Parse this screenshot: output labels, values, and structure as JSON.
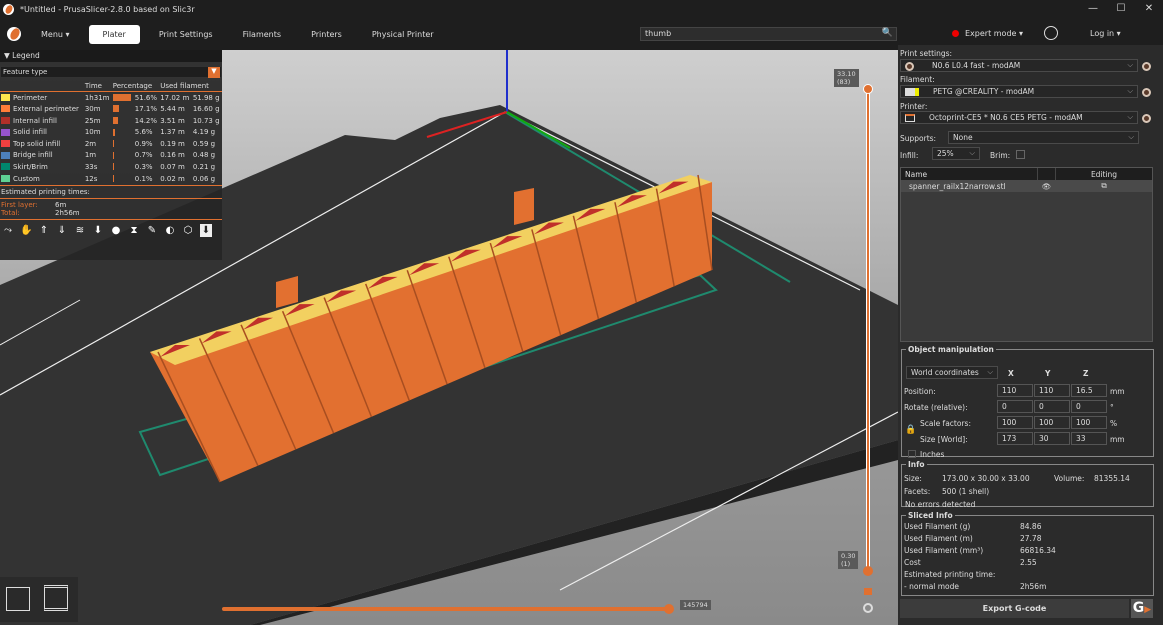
{
  "window": {
    "title": "*Untitled - PrusaSlicer-2.8.0 based on Slic3r",
    "controls": [
      "—",
      "☐",
      "✕"
    ]
  },
  "tabs": {
    "menu": "Menu ▾",
    "items": [
      "Plater",
      "Print Settings",
      "Filaments",
      "Printers",
      "Physical Printer"
    ],
    "active": "Plater"
  },
  "search": {
    "value": "thumb",
    "icon": "search-icon"
  },
  "mode": {
    "label": "Expert mode ▾",
    "color": "#e00000"
  },
  "login": "Log in ▾",
  "legend": {
    "title": "Legend",
    "view_type": "Feature type",
    "columns": [
      "",
      "Time",
      "Percentage",
      "Used filament",
      ""
    ],
    "rows": [
      {
        "name": "Perimeter",
        "color": "#ffe64d",
        "time": "1h31m",
        "pct": "51.6%",
        "pct_value": 51.6,
        "m": "17.02 m",
        "g": "51.98 g"
      },
      {
        "name": "External perimeter",
        "color": "#ff7d38",
        "time": "30m",
        "pct": "17.1%",
        "pct_value": 17.1,
        "m": "5.44 m",
        "g": "16.60 g"
      },
      {
        "name": "Internal infill",
        "color": "#b03029",
        "time": "25m",
        "pct": "14.2%",
        "pct_value": 14.2,
        "m": "3.51 m",
        "g": "10.73 g"
      },
      {
        "name": "Solid infill",
        "color": "#9654cc",
        "time": "10m",
        "pct": "5.6%",
        "pct_value": 5.6,
        "m": "1.37 m",
        "g": "4.19 g"
      },
      {
        "name": "Top solid infill",
        "color": "#f04040",
        "time": "2m",
        "pct": "0.9%",
        "pct_value": 0.9,
        "m": "0.19 m",
        "g": "0.59 g"
      },
      {
        "name": "Bridge infill",
        "color": "#4d80ba",
        "time": "1m",
        "pct": "0.7%",
        "pct_value": 0.7,
        "m": "0.16 m",
        "g": "0.48 g"
      },
      {
        "name": "Skirt/Brim",
        "color": "#00876e",
        "time": "33s",
        "pct": "0.3%",
        "pct_value": 0.3,
        "m": "0.07 m",
        "g": "0.21 g"
      },
      {
        "name": "Custom",
        "color": "#5ed194",
        "time": "12s",
        "pct": "0.1%",
        "pct_value": 0.1,
        "m": "0.02 m",
        "g": "0.06 g"
      }
    ],
    "estimated_label": "Estimated printing times:",
    "first_layer_label": "First layer:",
    "first_layer": "6m",
    "total_label": "Total:",
    "total": "2h56m"
  },
  "sliders": {
    "top_value": "33.10",
    "top_layer": "(83)",
    "bottom_value": "0.30",
    "bottom_layer": "(1)",
    "horizontal_value": "145794",
    "accent": "#e07030"
  },
  "panel": {
    "print_settings_label": "Print settings:",
    "print_settings": "N0.6 L0.4 fast - modAM",
    "filament_label": "Filament:",
    "filament": "PETG @CREALITY - modAM",
    "printer_label": "Printer:",
    "printer": "Octoprint-CE5 * N0.6 CE5 PETG - modAM",
    "supports_label": "Supports:",
    "supports": "None",
    "infill_label": "Infill:",
    "infill": "25%",
    "brim_label": "Brim:",
    "list_name_header": "Name",
    "list_editing_header": "Editing",
    "object_name": "spanner_railx12narrow.stl"
  },
  "manipulation": {
    "title": "Object manipulation",
    "coords": "World coordinates",
    "axes": [
      "X",
      "Y",
      "Z"
    ],
    "rows": [
      {
        "label": "Position:",
        "values": [
          "110",
          "110",
          "16.5"
        ],
        "unit": "mm"
      },
      {
        "label": "Rotate (relative):",
        "values": [
          "0",
          "0",
          "0"
        ],
        "unit": "°"
      },
      {
        "label": "Scale factors:",
        "values": [
          "100",
          "100",
          "100"
        ],
        "unit": "%"
      },
      {
        "label": "Size [World]:",
        "values": [
          "173",
          "30",
          "33"
        ],
        "unit": "mm"
      }
    ],
    "inches_label": "Inches"
  },
  "info": {
    "title": "Info",
    "size_label": "Size:",
    "size": "173.00 x 30.00 x 33.00",
    "volume_label": "Volume:",
    "volume": "81355.14",
    "facets_label": "Facets:",
    "facets": "500 (1 shell)",
    "errors": "No errors detected"
  },
  "sliced": {
    "title": "Sliced Info",
    "rows": [
      {
        "label": "Used Filament (g)",
        "value": "84.86"
      },
      {
        "label": "Used Filament (m)",
        "value": "27.78"
      },
      {
        "label": "Used Filament (mm³)",
        "value": "66816.34"
      },
      {
        "label": "Cost",
        "value": "2.55"
      },
      {
        "label": "Estimated printing time:",
        "value": ""
      },
      {
        "label": " - normal mode",
        "value": "2h56m"
      }
    ]
  },
  "export_label": "Export G-code"
}
